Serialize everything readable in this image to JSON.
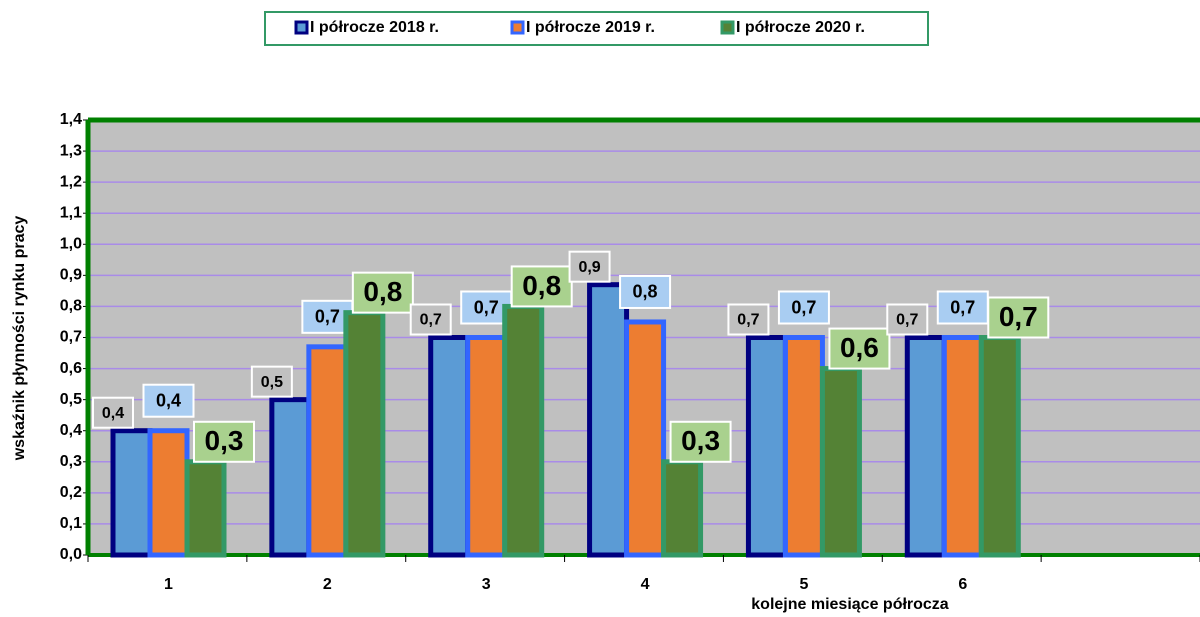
{
  "chart_data": {
    "type": "bar",
    "ylabel": "wskaźnik płynności rynku pracy",
    "xlabel": "kolejne miesiące półrocza",
    "categories": [
      "1",
      "2",
      "3",
      "4",
      "5",
      "6",
      null
    ],
    "series": [
      {
        "name": "I półrocze 2018 r.",
        "color": "#5b9bd5",
        "edgecolor": "#000080",
        "values": [
          0.4,
          0.5,
          0.7,
          0.87,
          0.7,
          0.7,
          null
        ],
        "value_labels": [
          "0,4",
          "0,5",
          "0,7",
          "0,9",
          "0,7",
          "0,7",
          null
        ]
      },
      {
        "name": "I półrocze 2019 r.",
        "color": "#ed7d31",
        "edgecolor": "#3366ff",
        "values": [
          0.4,
          0.67,
          0.7,
          0.75,
          0.7,
          0.7,
          null
        ],
        "value_labels": [
          "0,4",
          "0,7",
          "0,7",
          "0,8",
          "0,7",
          "0,7",
          null
        ]
      },
      {
        "name": "I półrocze 2020 r.",
        "color": "#548235",
        "edgecolor": "#339966",
        "values": [
          0.3,
          0.78,
          0.8,
          0.3,
          0.6,
          0.7,
          null
        ],
        "value_labels": [
          "0,3",
          "0,8",
          "0,8",
          "0,3",
          "0,6",
          "0,7",
          null
        ]
      }
    ],
    "ylim": [
      0,
      1.4
    ],
    "yticks": [
      {
        "value": 0,
        "label": "0,0"
      },
      {
        "value": 0.1,
        "label": "0,1"
      },
      {
        "value": 0.2,
        "label": "0,2"
      },
      {
        "value": 0.3,
        "label": "0,3"
      },
      {
        "value": 0.4,
        "label": "0,4"
      },
      {
        "value": 0.5,
        "label": "0,5"
      },
      {
        "value": 0.6,
        "label": "0,6"
      },
      {
        "value": 0.7,
        "label": "0,7"
      },
      {
        "value": 0.8,
        "label": "0,8"
      },
      {
        "value": 0.9,
        "label": "0,9"
      },
      {
        "value": 1.0,
        "label": "1,0"
      },
      {
        "value": 1.1,
        "label": "1,1"
      },
      {
        "value": 1.2,
        "label": "1,2"
      },
      {
        "value": 1.3,
        "label": "1,3"
      },
      {
        "value": 1.4,
        "label": "1,4"
      }
    ],
    "grid": true,
    "legend": "top"
  }
}
